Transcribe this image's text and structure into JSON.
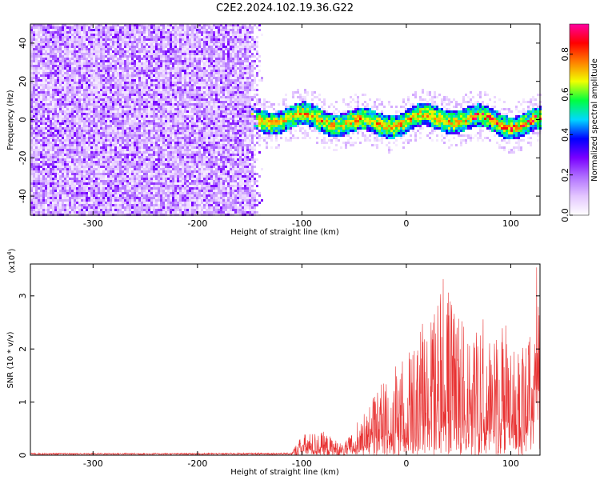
{
  "title": "C2E2.2024.102.19.36.G22",
  "chart_data": [
    {
      "type": "heatmap",
      "xlabel": "Height of straight line (km)",
      "ylabel": "Frequency (Hz)",
      "xlim": [
        -360,
        128
      ],
      "ylim": [
        -50,
        50
      ],
      "xticks": [
        -300,
        -200,
        -100,
        0,
        100
      ],
      "yticks": [
        -40,
        -20,
        0,
        20,
        40
      ],
      "noise_region_end": -145,
      "signal_band": {
        "x_start": -145,
        "x_end": 128,
        "center_hz": 0,
        "width_hz": 12
      },
      "colorbar": {
        "label": "Normalized spectral amplitude",
        "range": [
          0,
          0.95
        ],
        "ticks": [
          0.0,
          0.2,
          0.4,
          0.6,
          0.8
        ],
        "colormap": [
          "#ffffff",
          "#e3c6ff",
          "#b070ff",
          "#7a00ff",
          "#0000ff",
          "#00d8ff",
          "#00ff40",
          "#f0ff00",
          "#ff8000",
          "#ff0000",
          "#ff00a0"
        ]
      }
    },
    {
      "type": "line",
      "xlabel": "Height of straight line (km)",
      "ylabel": "SNR (10 * v/v)",
      "yunit": "(x10^4)",
      "xlim": [
        -360,
        128
      ],
      "ylim": [
        0,
        3.6
      ],
      "xticks": [
        -300,
        -200,
        -100,
        0,
        100
      ],
      "yticks": [
        0,
        1,
        2,
        3
      ],
      "color": "#e83232",
      "envelope": [
        {
          "x": -360,
          "y": 0.05
        },
        {
          "x": -200,
          "y": 0.05
        },
        {
          "x": -110,
          "y": 0.06
        },
        {
          "x": -100,
          "y": 0.4
        },
        {
          "x": -80,
          "y": 0.45
        },
        {
          "x": -60,
          "y": 0.2
        },
        {
          "x": -40,
          "y": 0.8
        },
        {
          "x": -20,
          "y": 1.5
        },
        {
          "x": 0,
          "y": 1.9
        },
        {
          "x": 20,
          "y": 2.4
        },
        {
          "x": 32,
          "y": 3.3
        },
        {
          "x": 50,
          "y": 3.0
        },
        {
          "x": 70,
          "y": 2.3
        },
        {
          "x": 90,
          "y": 2.2
        },
        {
          "x": 105,
          "y": 2.0
        },
        {
          "x": 120,
          "y": 2.5
        },
        {
          "x": 125,
          "y": 3.6
        },
        {
          "x": 128,
          "y": 2.3
        }
      ]
    }
  ]
}
